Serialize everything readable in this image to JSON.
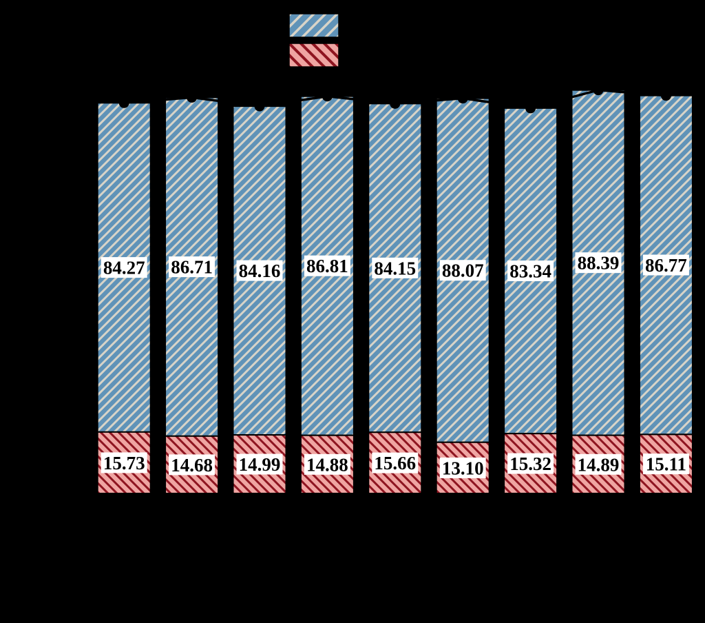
{
  "chart_data": {
    "type": "bar",
    "stacked": true,
    "orientation": "vertical",
    "background": "#000000",
    "axis_text_visible": false,
    "series": [
      {
        "name": "upper-blue-hatched-segment",
        "fill": "#6093b8",
        "hatch": "/",
        "hatch_color": "#d8d4c8",
        "edge_color": "#000000",
        "values": [
          84.27,
          86.71,
          84.16,
          86.81,
          84.15,
          88.07,
          83.34,
          88.39,
          86.77
        ],
        "labels": [
          "84.27",
          "86.71",
          "84.16",
          "86.81",
          "84.15",
          "88.07",
          "83.34",
          "88.39",
          "86.77"
        ]
      },
      {
        "name": "lower-red-hatched-segment",
        "fill": "#efa5a2",
        "hatch": "\\",
        "hatch_color": "#8e1420",
        "edge_color": "#000000",
        "values": [
          15.73,
          14.68,
          14.99,
          14.88,
          15.66,
          13.1,
          15.32,
          14.89,
          15.11
        ],
        "labels": [
          "15.73",
          "14.68",
          "14.99",
          "14.88",
          "15.66",
          "13.10",
          "15.32",
          "14.89",
          "15.11"
        ]
      }
    ],
    "totals_line": {
      "visible": true,
      "color": "#000000",
      "marker": "filled-circle"
    },
    "value_labels": {
      "bg": "#ffffff",
      "text_color": "#000000"
    }
  },
  "legend": {
    "items": [
      {
        "name": "blue-hatched-series",
        "fill": "#6093b8",
        "hatch": "/",
        "hatch_color": "#d8d4c8",
        "edge_color": "#000000"
      },
      {
        "name": "red-hatched-series",
        "fill": "#efa5a2",
        "hatch": "\\",
        "hatch_color": "#8e1420",
        "edge_color": "#000000"
      }
    ]
  }
}
